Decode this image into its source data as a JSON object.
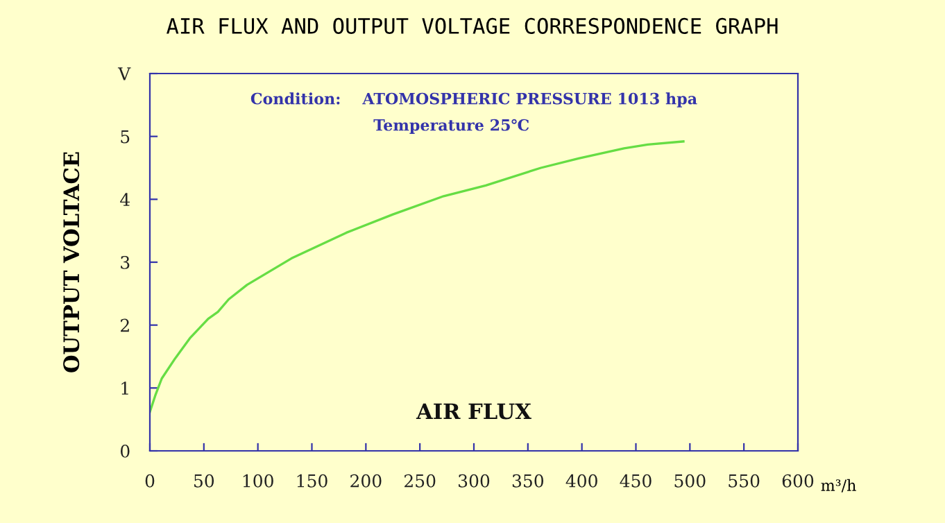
{
  "chart_data": {
    "type": "line",
    "title": "AIR FLUX AND OUTPUT VOLTAGE CORRESPONDENCE GRAPH",
    "xlabel": "m³/h",
    "ylabel": "OUTPUT VOLTACE",
    "annotations": [
      "Condition:    ATOMOSPHERIC PRESSURE 1013 hpa",
      "Temperature 25℃",
      "AIR FLUX"
    ],
    "x": [
      0,
      5,
      11,
      23,
      37,
      54,
      63,
      73,
      90,
      131,
      182,
      225,
      272,
      311,
      362,
      397,
      439,
      461,
      494
    ],
    "series": [
      {
        "color": "#66dd44",
        "values": [
          0.62,
          0.88,
          1.15,
          1.46,
          1.79,
          2.1,
          2.21,
          2.41,
          2.64,
          3.06,
          3.47,
          3.76,
          4.05,
          4.22,
          4.5,
          4.65,
          4.81,
          4.87,
          4.92
        ]
      }
    ],
    "xlim": [
      0,
      600
    ],
    "xticks": [
      0,
      50,
      100,
      150,
      200,
      250,
      300,
      350,
      400,
      450,
      500,
      550,
      600
    ],
    "ylim": [
      0,
      6
    ],
    "yticks": [
      0,
      1,
      2,
      3,
      4,
      5,
      {
        "value": 6,
        "label": "V"
      }
    ],
    "grid": false,
    "legend": false,
    "marker": "none",
    "line_style": "solid"
  }
}
